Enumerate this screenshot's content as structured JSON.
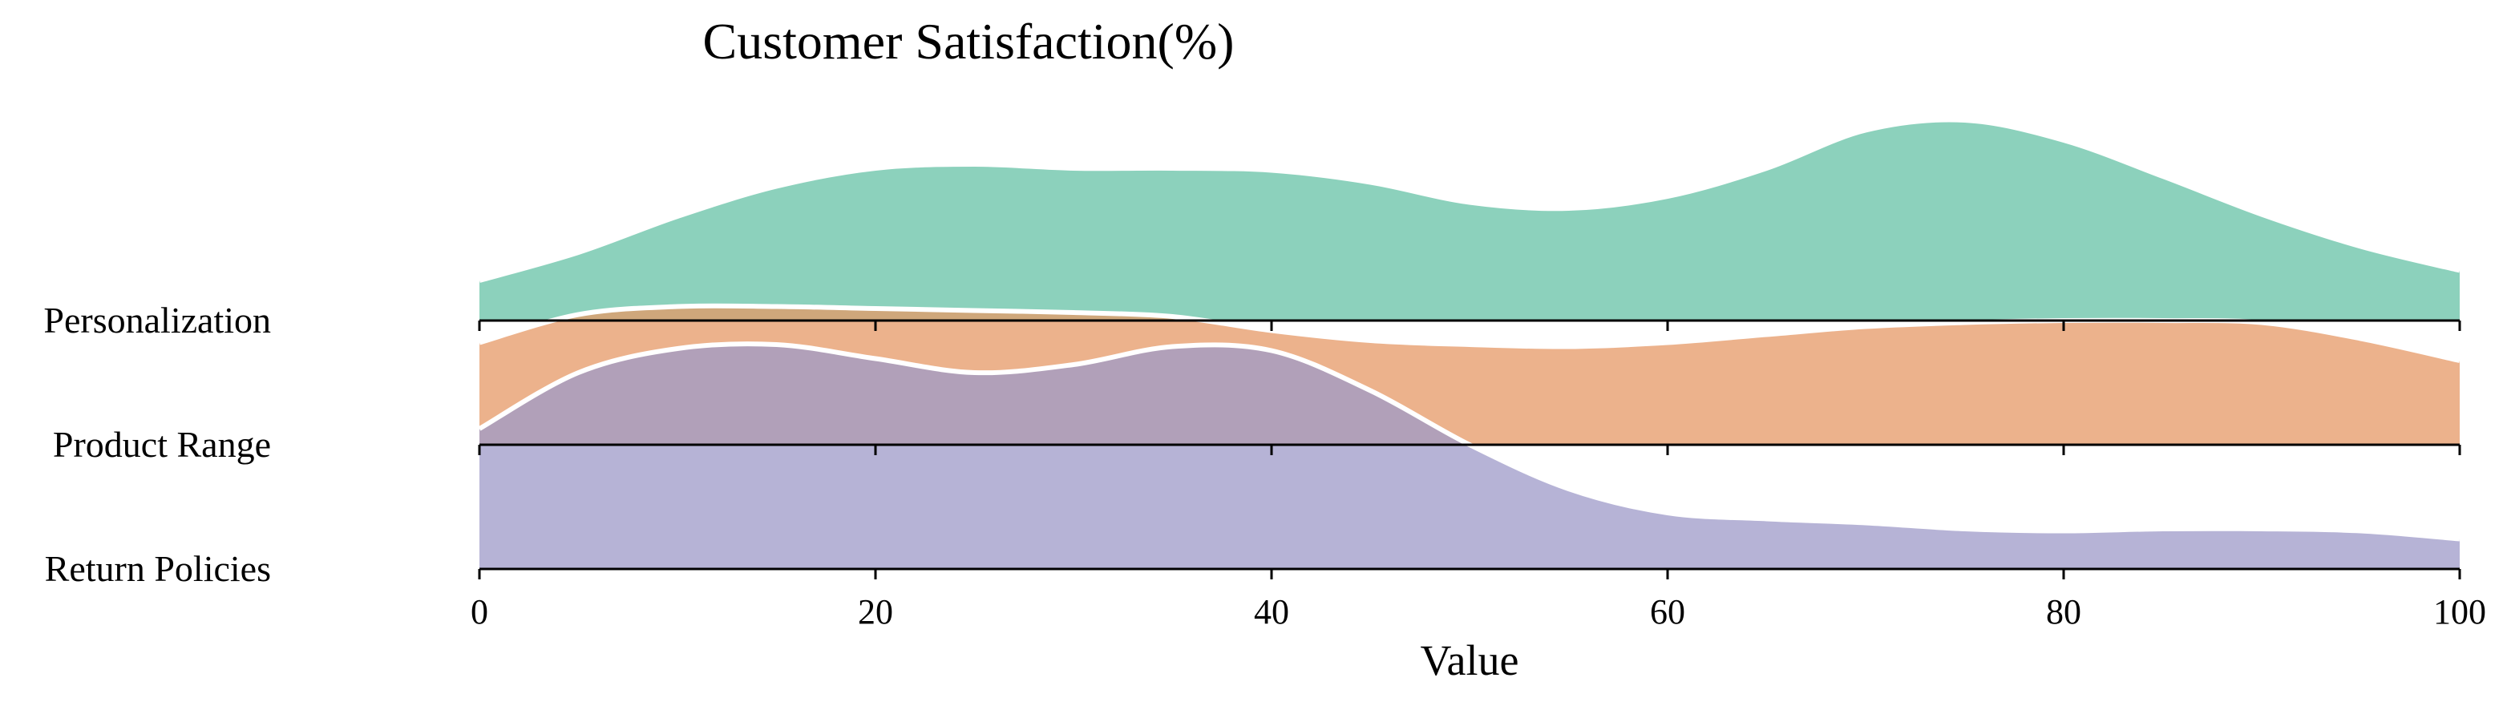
{
  "chart_data": {
    "type": "ridgeline",
    "title": "Customer Satisfaction(%)",
    "xlabel": "Value",
    "ylabel": "",
    "xlim": [
      0,
      100
    ],
    "xticks": [
      0,
      20,
      40,
      60,
      80,
      100
    ],
    "grid": false,
    "legend": "none",
    "series": [
      {
        "name": "Personalization",
        "color": "#66c2a5",
        "x": [
          0,
          5,
          10,
          15,
          20,
          25,
          30,
          35,
          40,
          45,
          50,
          55,
          60,
          65,
          70,
          75,
          80,
          85,
          90,
          95,
          100
        ],
        "density": [
          0.2,
          0.34,
          0.52,
          0.67,
          0.76,
          0.78,
          0.76,
          0.76,
          0.75,
          0.69,
          0.59,
          0.56,
          0.62,
          0.76,
          0.95,
          1.0,
          0.9,
          0.72,
          0.53,
          0.37,
          0.25
        ]
      },
      {
        "name": "Product Range",
        "color": "#e59866",
        "x": [
          0,
          5,
          10,
          15,
          20,
          25,
          30,
          35,
          40,
          45,
          50,
          55,
          60,
          65,
          70,
          75,
          80,
          85,
          90,
          95,
          100
        ],
        "density": [
          0.51,
          0.65,
          0.69,
          0.69,
          0.68,
          0.67,
          0.66,
          0.64,
          0.57,
          0.52,
          0.5,
          0.49,
          0.51,
          0.55,
          0.59,
          0.61,
          0.62,
          0.62,
          0.61,
          0.53,
          0.42
        ]
      },
      {
        "name": "Return Policies",
        "color": "#9e9ac8",
        "x": [
          0,
          5,
          10,
          15,
          20,
          25,
          30,
          35,
          40,
          45,
          50,
          55,
          60,
          65,
          70,
          75,
          80,
          85,
          90,
          95,
          100
        ],
        "density": [
          0.7,
          0.98,
          1.1,
          1.12,
          1.05,
          0.98,
          1.02,
          1.11,
          1.09,
          0.89,
          0.62,
          0.4,
          0.28,
          0.25,
          0.23,
          0.2,
          0.19,
          0.2,
          0.2,
          0.19,
          0.15
        ]
      }
    ]
  }
}
